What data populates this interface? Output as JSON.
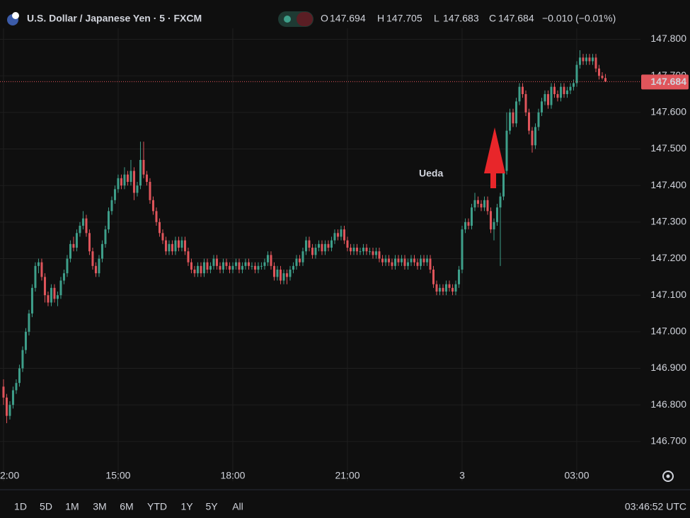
{
  "chart_data": {
    "type": "candlestick",
    "title": "U.S. Dollar / Japanese Yen · 5 · FXCM",
    "legend": [
      {
        "label": "O",
        "value": "147.694"
      },
      {
        "label": "H",
        "value": "147.705"
      },
      {
        "label": "L",
        "value": "147.683"
      },
      {
        "label": "C",
        "value": "147.684"
      }
    ],
    "change": "−0.010 (−0.01%)",
    "annotation": "Ueda",
    "up_color": "#3e9f8a",
    "down_color": "#e0555b",
    "annotation_color": "#e8262a",
    "grid": true,
    "ylim": [
      146.63,
      147.83
    ],
    "yticks": [
      {
        "value": 146.7,
        "label": "146.700"
      },
      {
        "value": 146.8,
        "label": "146.800"
      },
      {
        "value": 146.9,
        "label": "146.900"
      },
      {
        "value": 147.0,
        "label": "147.000"
      },
      {
        "value": 147.1,
        "label": "147.100"
      },
      {
        "value": 147.2,
        "label": "147.200"
      },
      {
        "value": 147.3,
        "label": "147.300"
      },
      {
        "value": 147.4,
        "label": "147.400"
      },
      {
        "value": 147.5,
        "label": "147.500"
      },
      {
        "value": 147.6,
        "label": "147.600"
      },
      {
        "value": 147.7,
        "label": "147.700"
      },
      {
        "value": 147.8,
        "label": "147.800"
      }
    ],
    "xlim": [
      -1.1,
      200
    ],
    "xticks": [
      {
        "value": 0,
        "label": "2:00"
      },
      {
        "value": 36,
        "label": "15:00"
      },
      {
        "value": 72,
        "label": "18:00"
      },
      {
        "value": 108,
        "label": "21:00"
      },
      {
        "value": 144,
        "label": "3"
      },
      {
        "value": 180,
        "label": "03:00"
      }
    ],
    "ohlc": [
      [
        146.85,
        146.87,
        146.8,
        146.82
      ],
      [
        146.82,
        146.83,
        146.75,
        146.77
      ],
      [
        146.77,
        146.81,
        146.76,
        146.8
      ],
      [
        146.8,
        146.85,
        146.79,
        146.84
      ],
      [
        146.84,
        146.87,
        146.83,
        146.86
      ],
      [
        146.86,
        146.91,
        146.85,
        146.9
      ],
      [
        146.9,
        146.96,
        146.89,
        146.95
      ],
      [
        146.95,
        147.01,
        146.94,
        147.0
      ],
      [
        147.0,
        147.06,
        146.99,
        147.05
      ],
      [
        147.05,
        147.13,
        147.04,
        147.12
      ],
      [
        147.12,
        147.19,
        147.11,
        147.18
      ],
      [
        147.18,
        147.2,
        147.16,
        147.19
      ],
      [
        147.19,
        147.2,
        147.14,
        147.15
      ],
      [
        147.15,
        147.16,
        147.08,
        147.1
      ],
      [
        147.1,
        147.11,
        147.07,
        147.08
      ],
      [
        147.08,
        147.13,
        147.07,
        147.12
      ],
      [
        147.12,
        147.13,
        147.08,
        147.09
      ],
      [
        147.09,
        147.11,
        147.07,
        147.1
      ],
      [
        147.1,
        147.15,
        147.09,
        147.14
      ],
      [
        147.14,
        147.17,
        147.13,
        147.16
      ],
      [
        147.16,
        147.21,
        147.15,
        147.2
      ],
      [
        147.2,
        147.25,
        147.19,
        147.24
      ],
      [
        147.24,
        147.26,
        147.22,
        147.23
      ],
      [
        147.23,
        147.28,
        147.22,
        147.27
      ],
      [
        147.27,
        147.3,
        147.26,
        147.29
      ],
      [
        147.29,
        147.33,
        147.28,
        147.31
      ],
      [
        147.31,
        147.32,
        147.26,
        147.27
      ],
      [
        147.27,
        147.28,
        147.21,
        147.22
      ],
      [
        147.22,
        147.23,
        147.17,
        147.18
      ],
      [
        147.18,
        147.19,
        147.15,
        147.16
      ],
      [
        147.16,
        147.21,
        147.15,
        147.2
      ],
      [
        147.2,
        147.25,
        147.19,
        147.24
      ],
      [
        147.24,
        147.29,
        147.23,
        147.28
      ],
      [
        147.28,
        147.34,
        147.27,
        147.33
      ],
      [
        147.33,
        147.37,
        147.32,
        147.36
      ],
      [
        147.36,
        147.4,
        147.35,
        147.39
      ],
      [
        147.39,
        147.43,
        147.38,
        147.42
      ],
      [
        147.42,
        147.43,
        147.39,
        147.4
      ],
      [
        147.4,
        147.45,
        147.39,
        147.43
      ],
      [
        147.43,
        147.44,
        147.4,
        147.41
      ],
      [
        147.41,
        147.47,
        147.4,
        147.44
      ],
      [
        147.44,
        147.45,
        147.36,
        147.38
      ],
      [
        147.38,
        147.41,
        147.37,
        147.4
      ],
      [
        147.4,
        147.52,
        147.39,
        147.47
      ],
      [
        147.47,
        147.52,
        147.42,
        147.43
      ],
      [
        147.43,
        147.44,
        147.4,
        147.41
      ],
      [
        147.41,
        147.42,
        147.35,
        147.36
      ],
      [
        147.36,
        147.37,
        147.32,
        147.33
      ],
      [
        147.33,
        147.34,
        147.29,
        147.3
      ],
      [
        147.3,
        147.31,
        147.26,
        147.27
      ],
      [
        147.27,
        147.28,
        147.24,
        147.25
      ],
      [
        147.25,
        147.26,
        147.21,
        147.22
      ],
      [
        147.22,
        147.25,
        147.21,
        147.24
      ],
      [
        147.24,
        147.25,
        147.21,
        147.22
      ],
      [
        147.22,
        147.26,
        147.21,
        147.25
      ],
      [
        147.25,
        147.26,
        147.22,
        147.23
      ],
      [
        147.23,
        147.26,
        147.22,
        147.25
      ],
      [
        147.25,
        147.26,
        147.21,
        147.22
      ],
      [
        147.22,
        147.23,
        147.18,
        147.19
      ],
      [
        147.19,
        147.2,
        147.16,
        147.17
      ],
      [
        147.17,
        147.18,
        147.15,
        147.16
      ],
      [
        147.16,
        147.19,
        147.15,
        147.18
      ],
      [
        147.18,
        147.19,
        147.15,
        147.16
      ],
      [
        147.16,
        147.2,
        147.15,
        147.19
      ],
      [
        147.19,
        147.2,
        147.16,
        147.17
      ],
      [
        147.17,
        147.19,
        147.16,
        147.18
      ],
      [
        147.18,
        147.21,
        147.17,
        147.2
      ],
      [
        147.2,
        147.21,
        147.17,
        147.18
      ],
      [
        147.18,
        147.19,
        147.16,
        147.17
      ],
      [
        147.17,
        147.2,
        147.16,
        147.19
      ],
      [
        147.19,
        147.2,
        147.17,
        147.18
      ],
      [
        147.18,
        147.19,
        147.16,
        147.17
      ],
      [
        147.17,
        147.19,
        147.16,
        147.18
      ],
      [
        147.18,
        147.2,
        147.17,
        147.19
      ],
      [
        147.19,
        147.2,
        147.16,
        147.17
      ],
      [
        147.17,
        147.19,
        147.16,
        147.18
      ],
      [
        147.18,
        147.2,
        147.17,
        147.19
      ],
      [
        147.19,
        147.2,
        147.17,
        147.18
      ],
      [
        147.18,
        147.19,
        147.17,
        147.18
      ],
      [
        147.18,
        147.19,
        147.16,
        147.17
      ],
      [
        147.17,
        147.19,
        147.16,
        147.18
      ],
      [
        147.18,
        147.19,
        147.17,
        147.18
      ],
      [
        147.18,
        147.2,
        147.17,
        147.19
      ],
      [
        147.19,
        147.22,
        147.18,
        147.21
      ],
      [
        147.21,
        147.22,
        147.17,
        147.18
      ],
      [
        147.18,
        147.19,
        147.14,
        147.15
      ],
      [
        147.15,
        147.18,
        147.14,
        147.17
      ],
      [
        147.17,
        147.18,
        147.13,
        147.14
      ],
      [
        147.14,
        147.17,
        147.13,
        147.16
      ],
      [
        147.16,
        147.17,
        147.13,
        147.15
      ],
      [
        147.15,
        147.18,
        147.14,
        147.17
      ],
      [
        147.17,
        147.19,
        147.16,
        147.18
      ],
      [
        147.18,
        147.21,
        147.17,
        147.2
      ],
      [
        147.2,
        147.21,
        147.18,
        147.19
      ],
      [
        147.19,
        147.23,
        147.18,
        147.22
      ],
      [
        147.22,
        147.26,
        147.21,
        147.25
      ],
      [
        147.25,
        147.26,
        147.22,
        147.23
      ],
      [
        147.23,
        147.24,
        147.2,
        147.21
      ],
      [
        147.21,
        147.24,
        147.2,
        147.23
      ],
      [
        147.23,
        147.25,
        147.22,
        147.24
      ],
      [
        147.24,
        147.25,
        147.21,
        147.22
      ],
      [
        147.22,
        147.25,
        147.21,
        147.24
      ],
      [
        147.24,
        147.25,
        147.22,
        147.23
      ],
      [
        147.23,
        147.26,
        147.22,
        147.25
      ],
      [
        147.25,
        147.28,
        147.24,
        147.27
      ],
      [
        147.27,
        147.28,
        147.25,
        147.26
      ],
      [
        147.26,
        147.29,
        147.25,
        147.28
      ],
      [
        147.28,
        147.29,
        147.24,
        147.25
      ],
      [
        147.25,
        147.26,
        147.22,
        147.23
      ],
      [
        147.23,
        147.24,
        147.21,
        147.22
      ],
      [
        147.22,
        147.24,
        147.21,
        147.23
      ],
      [
        147.23,
        147.24,
        147.21,
        147.22
      ],
      [
        147.22,
        147.23,
        147.21,
        147.22
      ],
      [
        147.22,
        147.24,
        147.21,
        147.23
      ],
      [
        147.23,
        147.24,
        147.21,
        147.22
      ],
      [
        147.22,
        147.23,
        147.21,
        147.22
      ],
      [
        147.22,
        147.23,
        147.2,
        147.21
      ],
      [
        147.21,
        147.23,
        147.2,
        147.22
      ],
      [
        147.22,
        147.23,
        147.19,
        147.2
      ],
      [
        147.2,
        147.21,
        147.18,
        147.19
      ],
      [
        147.19,
        147.21,
        147.18,
        147.2
      ],
      [
        147.2,
        147.21,
        147.18,
        147.19
      ],
      [
        147.19,
        147.2,
        147.17,
        147.18
      ],
      [
        147.18,
        147.21,
        147.17,
        147.2
      ],
      [
        147.2,
        147.21,
        147.18,
        147.19
      ],
      [
        147.19,
        147.21,
        147.18,
        147.2
      ],
      [
        147.2,
        147.21,
        147.17,
        147.18
      ],
      [
        147.18,
        147.2,
        147.17,
        147.19
      ],
      [
        147.19,
        147.21,
        147.18,
        147.2
      ],
      [
        147.2,
        147.21,
        147.18,
        147.19
      ],
      [
        147.19,
        147.2,
        147.17,
        147.18
      ],
      [
        147.18,
        147.21,
        147.17,
        147.2
      ],
      [
        147.2,
        147.21,
        147.18,
        147.19
      ],
      [
        147.19,
        147.21,
        147.18,
        147.2
      ],
      [
        147.2,
        147.21,
        147.16,
        147.17
      ],
      [
        147.17,
        147.18,
        147.12,
        147.13
      ],
      [
        147.13,
        147.14,
        147.1,
        147.11
      ],
      [
        147.11,
        147.13,
        147.1,
        147.12
      ],
      [
        147.12,
        147.13,
        147.1,
        147.11
      ],
      [
        147.11,
        147.14,
        147.1,
        147.13
      ],
      [
        147.13,
        147.14,
        147.11,
        147.12
      ],
      [
        147.12,
        147.13,
        147.1,
        147.11
      ],
      [
        147.11,
        147.14,
        147.1,
        147.13
      ],
      [
        147.13,
        147.18,
        147.12,
        147.17
      ],
      [
        147.17,
        147.29,
        147.16,
        147.28
      ],
      [
        147.28,
        147.31,
        147.27,
        147.3
      ],
      [
        147.3,
        147.31,
        147.28,
        147.29
      ],
      [
        147.29,
        147.35,
        147.28,
        147.34
      ],
      [
        147.34,
        147.38,
        147.33,
        147.36
      ],
      [
        147.36,
        147.37,
        147.34,
        147.35
      ],
      [
        147.35,
        147.36,
        147.33,
        147.34
      ],
      [
        147.34,
        147.37,
        147.33,
        147.36
      ],
      [
        147.36,
        147.37,
        147.32,
        147.33
      ],
      [
        147.33,
        147.34,
        147.27,
        147.28
      ],
      [
        147.28,
        147.31,
        147.25,
        147.3
      ],
      [
        147.3,
        147.35,
        147.29,
        147.34
      ],
      [
        147.34,
        147.38,
        147.18,
        147.37
      ],
      [
        147.37,
        147.45,
        147.36,
        147.44
      ],
      [
        147.44,
        147.6,
        147.43,
        147.55
      ],
      [
        147.55,
        147.61,
        147.54,
        147.6
      ],
      [
        147.6,
        147.61,
        147.56,
        147.57
      ],
      [
        147.57,
        147.64,
        147.56,
        147.63
      ],
      [
        147.63,
        147.68,
        147.62,
        147.67
      ],
      [
        147.67,
        147.68,
        147.64,
        147.65
      ],
      [
        147.65,
        147.66,
        147.59,
        147.6
      ],
      [
        147.6,
        147.61,
        147.54,
        147.55
      ],
      [
        147.55,
        147.56,
        147.49,
        147.51
      ],
      [
        147.51,
        147.57,
        147.5,
        147.56
      ],
      [
        147.56,
        147.61,
        147.55,
        147.6
      ],
      [
        147.6,
        147.64,
        147.59,
        147.63
      ],
      [
        147.63,
        147.66,
        147.62,
        147.65
      ],
      [
        147.65,
        147.66,
        147.61,
        147.62
      ],
      [
        147.62,
        147.68,
        147.61,
        147.67
      ],
      [
        147.67,
        147.68,
        147.64,
        147.65
      ],
      [
        147.65,
        147.66,
        147.63,
        147.64
      ],
      [
        147.64,
        147.68,
        147.63,
        147.67
      ],
      [
        147.67,
        147.68,
        147.64,
        147.65
      ],
      [
        147.65,
        147.67,
        147.64,
        147.66
      ],
      [
        147.66,
        147.68,
        147.65,
        147.67
      ],
      [
        147.67,
        147.69,
        147.66,
        147.68
      ],
      [
        147.68,
        147.74,
        147.67,
        147.73
      ],
      [
        147.73,
        147.77,
        147.72,
        147.75
      ],
      [
        147.75,
        147.76,
        147.73,
        147.74
      ],
      [
        147.74,
        147.76,
        147.73,
        147.75
      ],
      [
        147.75,
        147.76,
        147.73,
        147.74
      ],
      [
        147.74,
        147.76,
        147.73,
        147.75
      ],
      [
        147.75,
        147.76,
        147.71,
        147.72
      ],
      [
        147.72,
        147.73,
        147.69,
        147.7
      ],
      [
        147.7,
        147.71,
        147.69,
        147.694
      ],
      [
        147.694,
        147.705,
        147.683,
        147.684
      ]
    ]
  },
  "toolbar": {
    "ranges": [
      "1D",
      "5D",
      "1M",
      "3M",
      "6M",
      "YTD",
      "1Y",
      "5Y",
      "All"
    ],
    "clock": "03:46:52 UTC"
  }
}
